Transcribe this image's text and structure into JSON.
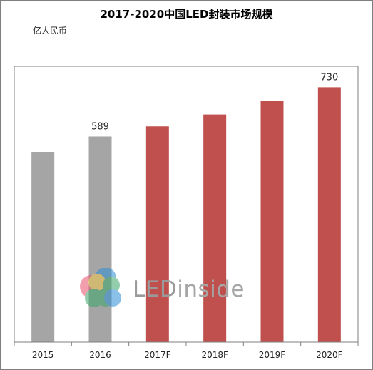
{
  "title": "2017-2020中国LED封装市场规模",
  "unit_label": "亿人民币",
  "watermark": {
    "prefix": "LED",
    "suffix": "inside"
  },
  "colors": {
    "actual": "#a5a5a5",
    "forecast": "#c0504d",
    "axis": "#7f7f7f"
  },
  "chart_data": {
    "type": "bar",
    "title": "2017-2020中国LED封装市场规模",
    "ylabel": "亿人民币",
    "categories": [
      "2015",
      "2016",
      "2017F",
      "2018F",
      "2019F",
      "2020F"
    ],
    "values": [
      545,
      589,
      618,
      652,
      691,
      730
    ],
    "data_labels": [
      "",
      "589",
      "",
      "",
      "",
      "730"
    ],
    "bar_colors": [
      "#a5a5a5",
      "#a5a5a5",
      "#c0504d",
      "#c0504d",
      "#c0504d",
      "#c0504d"
    ],
    "ylim": [
      0,
      790
    ],
    "grid": false,
    "legend": "none"
  }
}
